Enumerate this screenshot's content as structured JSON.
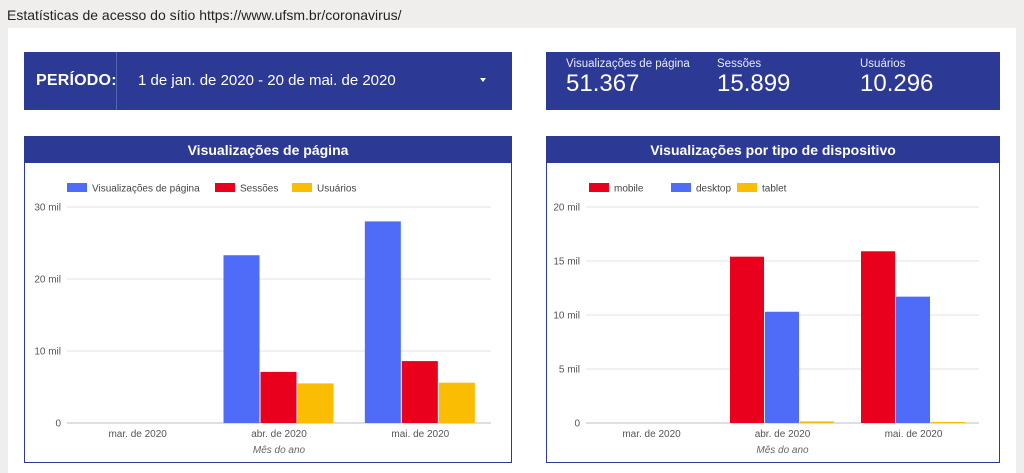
{
  "page_title": "Estatísticas de acesso do sítio https://www.ufsm.br/coronavirus/",
  "period": {
    "label": "PERÍODO:",
    "value": "1 de jan. de 2020 - 20 de mai. de 2020",
    "caret_icon": "caret-down-icon"
  },
  "kpis": [
    {
      "label": "Visualizações de página",
      "value": "51.367"
    },
    {
      "label": "Sessões",
      "value": "15.899"
    },
    {
      "label": "Usuários",
      "value": "10.296"
    }
  ],
  "colors": {
    "header_bg": "#2c3a95",
    "blue": "#4e6cf7",
    "red": "#e8001c",
    "yellow": "#fbbc04",
    "grid": "#e0e0e0"
  },
  "chart_data": [
    {
      "type": "bar",
      "title": "Visualizações de página",
      "xlabel": "Mês do ano",
      "ylabel": "",
      "ylim": [
        0,
        30000
      ],
      "yticks": [
        0,
        10000,
        20000,
        30000
      ],
      "ytick_labels": [
        "0",
        "10 mil",
        "20 mil",
        "30 mil"
      ],
      "categories": [
        "mar. de 2020",
        "abr. de 2020",
        "mai. de 2020"
      ],
      "legend_position": "top-left",
      "series": [
        {
          "name": "Visualizações de página",
          "color": "#4e6cf7",
          "values": [
            0,
            23300,
            28000
          ]
        },
        {
          "name": "Sessões",
          "color": "#e8001c",
          "values": [
            0,
            7100,
            8600
          ]
        },
        {
          "name": "Usuários",
          "color": "#fbbc04",
          "values": [
            0,
            5500,
            5600
          ]
        }
      ]
    },
    {
      "type": "bar",
      "title": "Visualizações por tipo de dispositivo",
      "xlabel": "Mês do ano",
      "ylabel": "",
      "ylim": [
        0,
        20000
      ],
      "yticks": [
        0,
        5000,
        10000,
        15000,
        20000
      ],
      "ytick_labels": [
        "0",
        "5 mil",
        "10 mil",
        "15 mil",
        "20 mil"
      ],
      "categories": [
        "mar. de 2020",
        "abr. de 2020",
        "mai. de 2020"
      ],
      "legend_position": "top-left",
      "series": [
        {
          "name": "mobile",
          "color": "#e8001c",
          "values": [
            0,
            15400,
            15900
          ]
        },
        {
          "name": "desktop",
          "color": "#4e6cf7",
          "values": [
            0,
            10300,
            11700
          ]
        },
        {
          "name": "tablet",
          "color": "#fbbc04",
          "values": [
            0,
            150,
            100
          ]
        }
      ]
    }
  ]
}
